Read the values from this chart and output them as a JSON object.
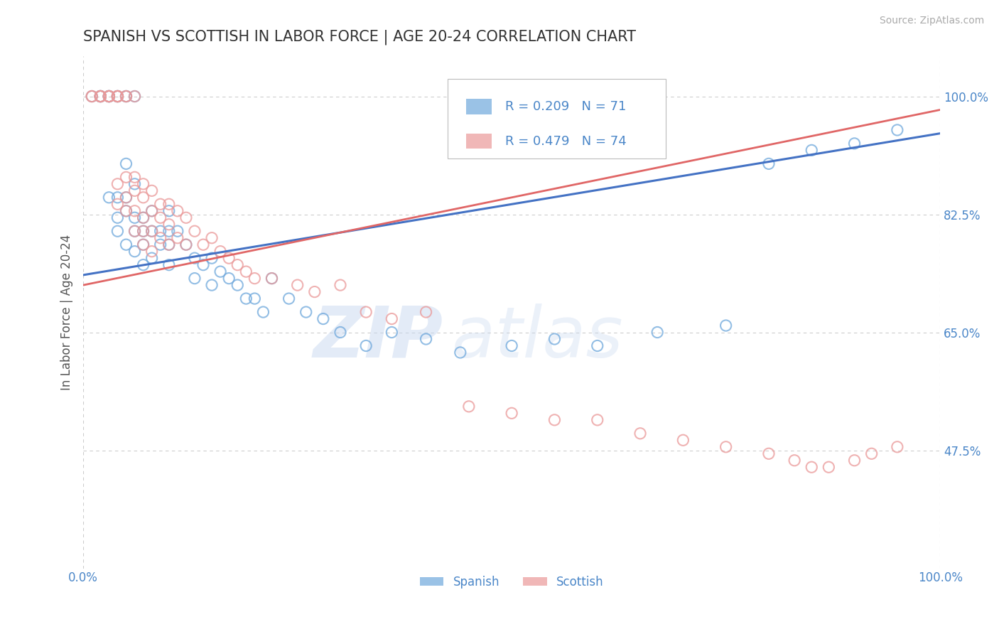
{
  "title": "SPANISH VS SCOTTISH IN LABOR FORCE | AGE 20-24 CORRELATION CHART",
  "source": "Source: ZipAtlas.com",
  "ylabel": "In Labor Force | Age 20-24",
  "xlim": [
    0.0,
    1.0
  ],
  "ylim": [
    0.3,
    1.06
  ],
  "yticks": [
    0.475,
    0.65,
    0.825,
    1.0
  ],
  "ytick_labels": [
    "47.5%",
    "65.0%",
    "82.5%",
    "100.0%"
  ],
  "xticks": [
    0.0,
    1.0
  ],
  "xtick_labels": [
    "0.0%",
    "100.0%"
  ],
  "title_fontsize": 15,
  "title_color": "#333333",
  "source_color": "#aaaaaa",
  "watermark_zip": "ZIP",
  "watermark_atlas": "atlas",
  "spanish_color": "#6fa8dc",
  "scottish_color": "#ea9999",
  "trend_spanish_color": "#4472c4",
  "trend_scottish_color": "#e06666",
  "R_spanish": 0.209,
  "N_spanish": 71,
  "R_scottish": 0.479,
  "N_scottish": 74,
  "spanish_x": [
    0.01,
    0.02,
    0.02,
    0.02,
    0.02,
    0.03,
    0.03,
    0.03,
    0.03,
    0.03,
    0.04,
    0.04,
    0.04,
    0.04,
    0.04,
    0.04,
    0.05,
    0.05,
    0.05,
    0.05,
    0.05,
    0.05,
    0.06,
    0.06,
    0.06,
    0.06,
    0.06,
    0.07,
    0.07,
    0.07,
    0.07,
    0.08,
    0.08,
    0.08,
    0.09,
    0.09,
    0.1,
    0.1,
    0.1,
    0.1,
    0.11,
    0.12,
    0.13,
    0.13,
    0.14,
    0.15,
    0.15,
    0.16,
    0.17,
    0.18,
    0.19,
    0.2,
    0.21,
    0.22,
    0.24,
    0.26,
    0.28,
    0.3,
    0.33,
    0.36,
    0.4,
    0.44,
    0.5,
    0.55,
    0.6,
    0.67,
    0.75,
    0.8,
    0.85,
    0.9,
    0.95
  ],
  "spanish_y": [
    1.0,
    1.0,
    1.0,
    1.0,
    1.0,
    1.0,
    1.0,
    1.0,
    1.0,
    0.85,
    1.0,
    1.0,
    1.0,
    0.85,
    0.82,
    0.8,
    1.0,
    1.0,
    0.9,
    0.85,
    0.83,
    0.78,
    1.0,
    0.87,
    0.82,
    0.8,
    0.77,
    0.82,
    0.8,
    0.78,
    0.75,
    0.83,
    0.8,
    0.76,
    0.8,
    0.78,
    0.83,
    0.8,
    0.78,
    0.75,
    0.8,
    0.78,
    0.76,
    0.73,
    0.75,
    0.76,
    0.72,
    0.74,
    0.73,
    0.72,
    0.7,
    0.7,
    0.68,
    0.73,
    0.7,
    0.68,
    0.67,
    0.65,
    0.63,
    0.65,
    0.64,
    0.62,
    0.63,
    0.64,
    0.63,
    0.65,
    0.66,
    0.9,
    0.92,
    0.93,
    0.95
  ],
  "scottish_x": [
    0.01,
    0.01,
    0.02,
    0.02,
    0.02,
    0.02,
    0.03,
    0.03,
    0.03,
    0.03,
    0.04,
    0.04,
    0.04,
    0.04,
    0.04,
    0.04,
    0.05,
    0.05,
    0.05,
    0.05,
    0.05,
    0.06,
    0.06,
    0.06,
    0.06,
    0.06,
    0.07,
    0.07,
    0.07,
    0.07,
    0.07,
    0.08,
    0.08,
    0.08,
    0.08,
    0.09,
    0.09,
    0.09,
    0.1,
    0.1,
    0.1,
    0.11,
    0.11,
    0.12,
    0.12,
    0.13,
    0.14,
    0.15,
    0.16,
    0.17,
    0.18,
    0.19,
    0.2,
    0.22,
    0.25,
    0.27,
    0.3,
    0.33,
    0.36,
    0.4,
    0.45,
    0.5,
    0.55,
    0.6,
    0.65,
    0.7,
    0.75,
    0.8,
    0.83,
    0.85,
    0.87,
    0.9,
    0.92,
    0.95
  ],
  "scottish_y": [
    1.0,
    1.0,
    1.0,
    1.0,
    1.0,
    1.0,
    1.0,
    1.0,
    1.0,
    1.0,
    1.0,
    1.0,
    1.0,
    1.0,
    0.87,
    0.84,
    1.0,
    1.0,
    0.88,
    0.85,
    0.83,
    1.0,
    0.88,
    0.86,
    0.83,
    0.8,
    0.87,
    0.85,
    0.82,
    0.8,
    0.78,
    0.86,
    0.83,
    0.8,
    0.77,
    0.84,
    0.82,
    0.79,
    0.84,
    0.81,
    0.78,
    0.83,
    0.79,
    0.82,
    0.78,
    0.8,
    0.78,
    0.79,
    0.77,
    0.76,
    0.75,
    0.74,
    0.73,
    0.73,
    0.72,
    0.71,
    0.72,
    0.68,
    0.67,
    0.68,
    0.54,
    0.53,
    0.52,
    0.52,
    0.5,
    0.49,
    0.48,
    0.47,
    0.46,
    0.45,
    0.45,
    0.46,
    0.47,
    0.48
  ],
  "background_color": "#ffffff",
  "grid_color": "#cccccc",
  "legend_text_color": "#4a86c8",
  "legend_fontsize": 13,
  "axis_tick_color": "#4a86c8"
}
